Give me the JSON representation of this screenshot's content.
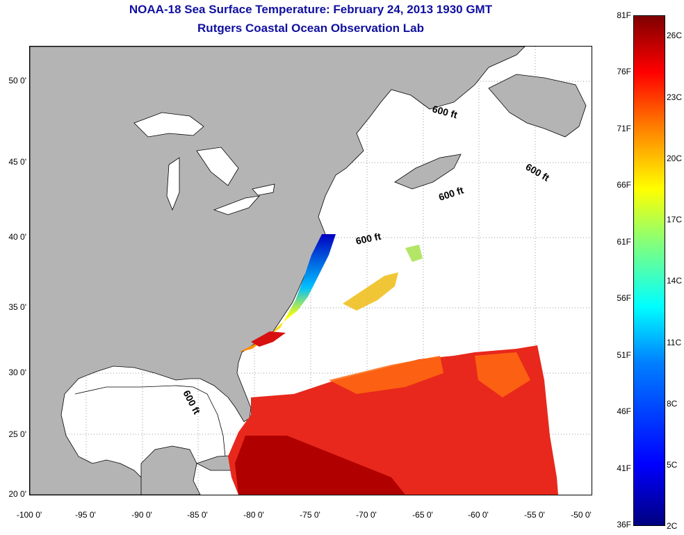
{
  "title": {
    "line1": "NOAA-18 Sea Surface Temperature:  February 24, 2013 1930 GMT",
    "line2": "Rutgers Coastal Ocean Observation Lab"
  },
  "map": {
    "lat_ticks": [
      "50 0'",
      "45 0'",
      "40 0'",
      "35 0'",
      "30 0'",
      "25 0'",
      "20 0'"
    ],
    "lon_ticks": [
      "-100 0'",
      "-95 0'",
      "-90 0'",
      "-85 0'",
      "-80 0'",
      "-75 0'",
      "-70 0'",
      "-65 0'",
      "-60 0'",
      "-55 0'",
      "-50 0'"
    ],
    "contour_label": "600 ft",
    "colors": {
      "land": "#b4b4b4",
      "no_data": "#ffffff"
    }
  },
  "colorbar": {
    "fahrenheit": [
      "81F",
      "76F",
      "71F",
      "66F",
      "61F",
      "56F",
      "51F",
      "46F",
      "41F",
      "36F"
    ],
    "celsius": [
      "26C",
      "23C",
      "20C",
      "17C",
      "14C",
      "11C",
      "8C",
      "5C",
      "2C"
    ],
    "colormap": "jet"
  }
}
